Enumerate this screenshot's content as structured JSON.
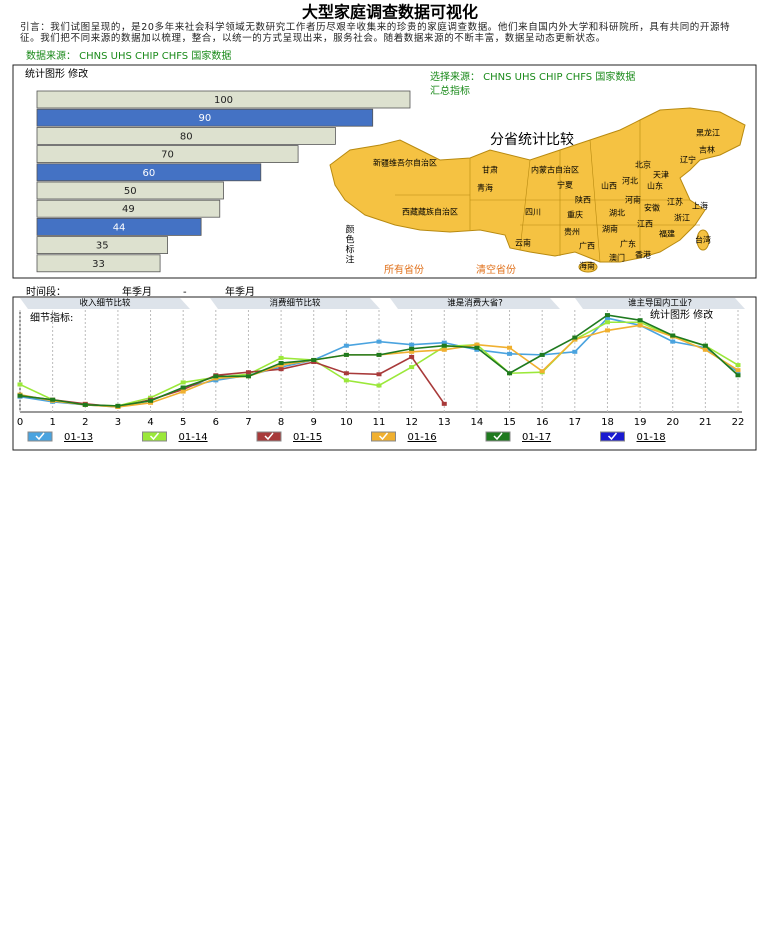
{
  "title": "大型家庭调查数据可视化",
  "intro": "引言：我们试图呈现的，是20多年来社会科学领域无数研究工作者历尽艰辛收集来的珍贵的家庭调查数据。他们来自国内外大学和科研院所，具有共同的开源特征。我们把不同来源的数据加以梳理，整合，以统一的方式呈现出来，服务社会。随着数据来源的不断丰富，数据呈动态更新状态。",
  "source": "数据来源： CHNS UHS CHIP CHFS 国家数据",
  "bar_panel": {
    "header": "统计图形 修改",
    "xlim": [
      0,
      100
    ],
    "bars": [
      {
        "value": 100,
        "color": "#dde1cf"
      },
      {
        "value": 90,
        "color": "#4472c4"
      },
      {
        "value": 80,
        "color": "#dde1cf"
      },
      {
        "value": 70,
        "color": "#dde1cf"
      },
      {
        "value": 60,
        "color": "#4472c4"
      },
      {
        "value": 50,
        "color": "#dde1cf"
      },
      {
        "value": 49,
        "color": "#dde1cf"
      },
      {
        "value": 44,
        "color": "#4472c4"
      },
      {
        "value": 35,
        "color": "#dde1cf"
      },
      {
        "value": 33,
        "color": "#dde1cf"
      }
    ]
  },
  "map": {
    "select_source": "选择来源： CHNS UHS CHIP CHFS 国家数据",
    "summary": "汇总指标",
    "title": "分省统计比较",
    "legend_note": "颜色标注",
    "buttons": [
      "所有省份",
      "清空省份"
    ],
    "provinces": [
      "黑龙江",
      "吉林",
      "辽宁",
      "北京",
      "天津",
      "河北",
      "山东",
      "山西",
      "内蒙古自治区",
      "宁夏",
      "甘肃",
      "新疆维吾尔自治区",
      "青海",
      "西藏藏族自治区",
      "陕西",
      "河南",
      "江苏",
      "上海",
      "安徽",
      "湖北",
      "四川",
      "重庆",
      "浙江",
      "江西",
      "湖南",
      "贵州",
      "云南",
      "广西",
      "广东",
      "福建",
      "台湾",
      "海南",
      "澳门",
      "香港"
    ]
  },
  "time": {
    "label": "时间段：",
    "from": "年季月",
    "sep": "-",
    "to": "年季月"
  },
  "tabs": [
    "收入细节比较",
    "消费细节比较",
    "谁是消费大省?",
    "谁主导国内工业?"
  ],
  "line_chart": {
    "type": "line",
    "label": "细节指标:",
    "menu": "统计图形 修改",
    "xlim": [
      0,
      22
    ],
    "xticks": [
      0,
      1,
      2,
      3,
      4,
      5,
      6,
      7,
      8,
      9,
      10,
      11,
      12,
      13,
      14,
      15,
      16,
      17,
      18,
      19,
      20,
      21,
      22
    ],
    "ylim": [
      0,
      100
    ],
    "series": [
      {
        "name": "01-13",
        "color": "#4aa3df",
        "values": [
          15,
          10,
          7,
          5,
          11,
          24,
          31,
          36,
          44,
          51,
          65,
          69,
          66,
          68,
          61,
          57,
          56,
          59,
          92,
          85,
          69,
          63,
          39
        ]
      },
      {
        "name": "01-14",
        "color": "#9be83a",
        "values": [
          27,
          12,
          7,
          6,
          14,
          29,
          34,
          37,
          53,
          51,
          31,
          26,
          44,
          64,
          66,
          38,
          39,
          71,
          88,
          88,
          74,
          65,
          46
        ]
      },
      {
        "name": "01-15",
        "color": "#a83a3a",
        "values": [
          16,
          12,
          8,
          5,
          12,
          22,
          36,
          39,
          42,
          49,
          38,
          37,
          54,
          8,
          null,
          null,
          null,
          null,
          null,
          null,
          null,
          null,
          null
        ]
      },
      {
        "name": "01-16",
        "color": "#f0b030",
        "values": [
          17,
          11,
          7,
          5,
          9,
          20,
          33,
          35,
          46,
          51,
          56,
          56,
          59,
          61,
          66,
          63,
          40,
          71,
          80,
          85,
          74,
          61,
          41
        ]
      },
      {
        "name": "01-17",
        "color": "#1f7a1f",
        "values": [
          16,
          12,
          7,
          6,
          11,
          24,
          35,
          35,
          48,
          51,
          56,
          56,
          62,
          65,
          63,
          38,
          56,
          73,
          95,
          90,
          75,
          65,
          36
        ]
      },
      {
        "name": "01-18",
        "color": "#1a1ad0",
        "values": [
          null,
          null,
          null,
          null,
          null,
          null,
          null,
          null,
          null,
          null,
          null,
          null,
          null,
          null,
          null,
          null,
          null,
          null,
          null,
          null,
          null,
          null,
          null
        ]
      }
    ]
  }
}
